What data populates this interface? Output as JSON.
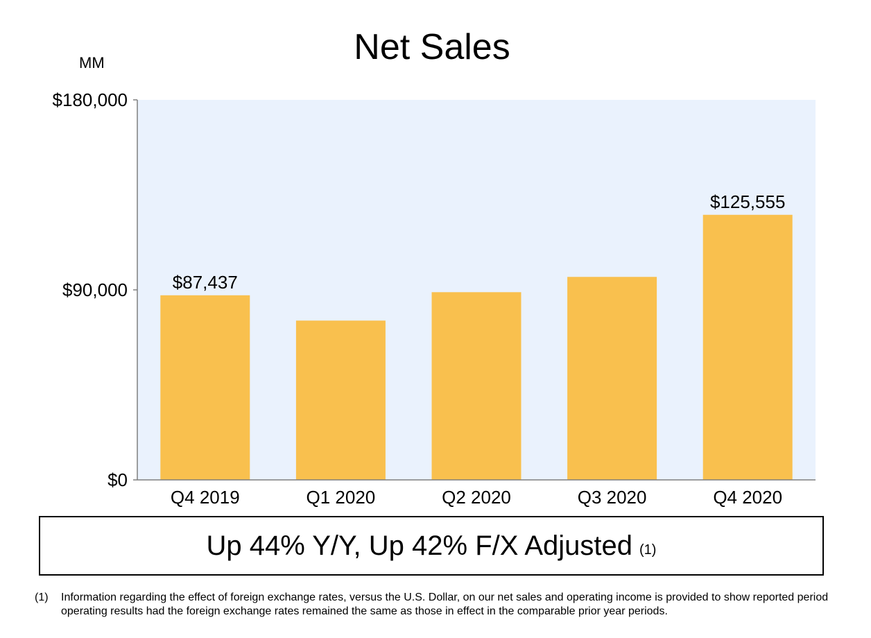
{
  "chart_data": {
    "type": "bar",
    "title": "Net Sales",
    "unit_label": "MM",
    "categories": [
      "Q4 2019",
      "Q1 2020",
      "Q2 2020",
      "Q3 2020",
      "Q4 2020"
    ],
    "values": [
      87437,
      75452,
      88912,
      96145,
      125555
    ],
    "data_labels": [
      "$87,437",
      "",
      "",
      "",
      "$125,555"
    ],
    "ylim": [
      0,
      180000
    ],
    "yticks": [
      0,
      90000,
      180000
    ],
    "ytick_labels": [
      "$0",
      "$90,000",
      "$180,000"
    ],
    "grid": false,
    "legend": "none"
  },
  "colors": {
    "bar": "#f9c04e",
    "plot_background": "#eaf2fd",
    "axis": "#7f7f7f"
  },
  "summary": {
    "text": "Up 44% Y/Y, Up 42% F/X Adjusted",
    "ref": "(1)"
  },
  "footnote": {
    "ref": "(1)",
    "text": "Information regarding the effect of foreign exchange rates, versus the U.S. Dollar, on our net sales and operating income is provided to show reported period operating results had the foreign exchange rates remained the same as those in effect in the comparable prior year periods."
  }
}
